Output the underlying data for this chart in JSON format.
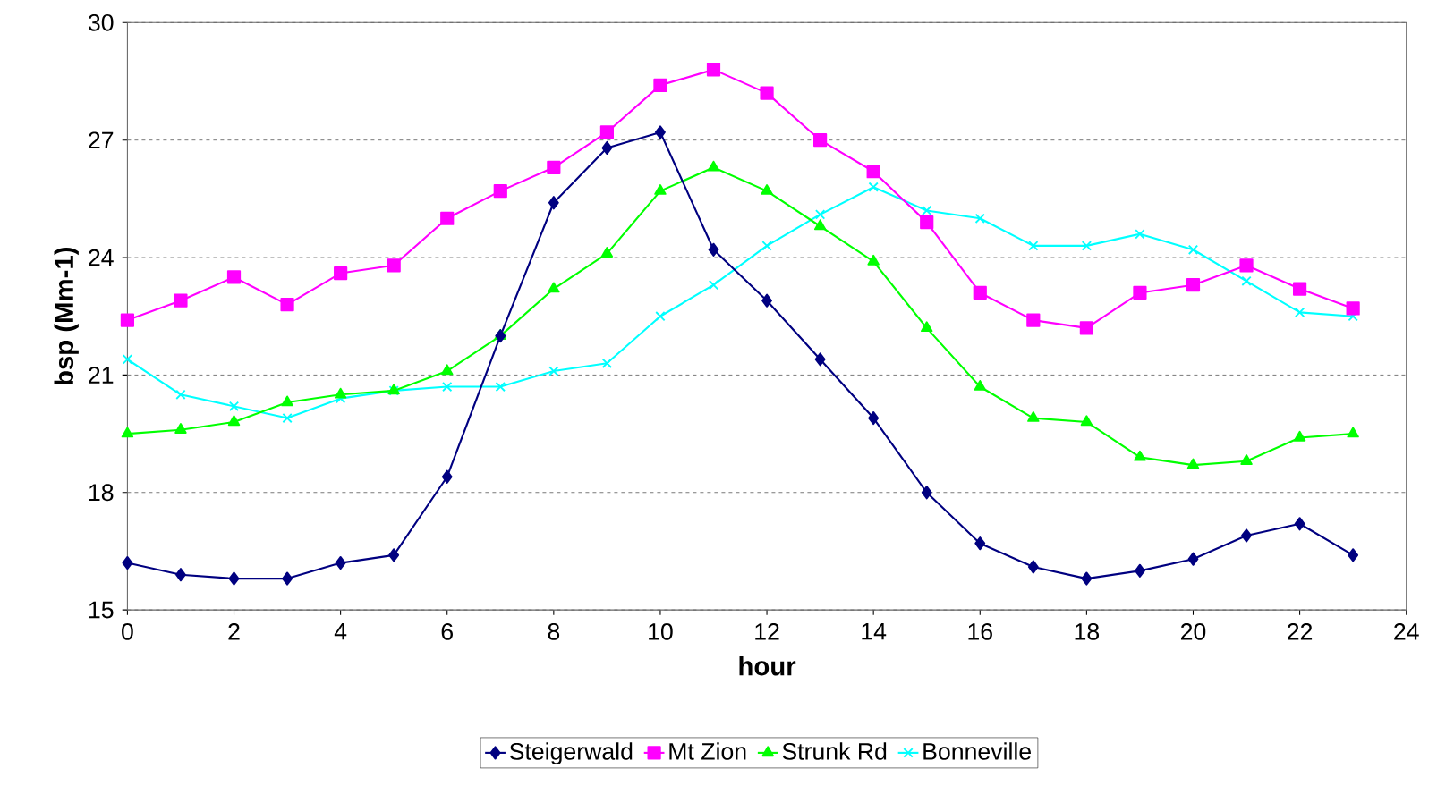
{
  "chart_data": {
    "type": "line",
    "xlabel": "hour",
    "ylabel": "bsp (Mm-1)",
    "x": [
      0,
      1,
      2,
      3,
      4,
      5,
      6,
      7,
      8,
      9,
      10,
      11,
      12,
      13,
      14,
      15,
      16,
      17,
      18,
      19,
      20,
      21,
      22,
      23
    ],
    "xlim": [
      0,
      24
    ],
    "xticks": [
      0,
      2,
      4,
      6,
      8,
      10,
      12,
      14,
      16,
      18,
      20,
      22,
      24
    ],
    "ylim": [
      15,
      30
    ],
    "yticks": [
      15,
      18,
      21,
      24,
      27,
      30
    ],
    "grid": "y",
    "legend": "bottom",
    "line_style": "solid",
    "series": [
      {
        "name": "Steigerwald",
        "color": "#000080",
        "marker": "diamond",
        "values": [
          16.2,
          15.9,
          15.8,
          15.8,
          16.2,
          16.4,
          18.4,
          22.0,
          25.4,
          26.8,
          27.2,
          24.2,
          22.9,
          21.4,
          19.9,
          18.0,
          16.7,
          16.1,
          15.8,
          16.0,
          16.3,
          16.9,
          17.2,
          16.4
        ]
      },
      {
        "name": "Mt Zion",
        "color": "#ff00ff",
        "marker": "square",
        "values": [
          22.4,
          22.9,
          23.5,
          22.8,
          23.6,
          23.8,
          25.0,
          25.7,
          26.3,
          27.2,
          28.4,
          28.8,
          28.2,
          27.0,
          26.2,
          24.9,
          23.1,
          22.4,
          22.2,
          23.1,
          23.3,
          23.8,
          23.2,
          22.7
        ]
      },
      {
        "name": "Strunk Rd",
        "color": "#00ff00",
        "marker": "triangle",
        "values": [
          19.5,
          19.6,
          19.8,
          20.3,
          20.5,
          20.6,
          21.1,
          22.0,
          23.2,
          24.1,
          25.7,
          26.3,
          25.7,
          24.8,
          23.9,
          22.2,
          20.7,
          19.9,
          19.8,
          18.9,
          18.7,
          18.8,
          19.4,
          19.5
        ]
      },
      {
        "name": "Bonneville",
        "color": "#00ffff",
        "marker": "cross",
        "values": [
          21.4,
          20.5,
          20.2,
          19.9,
          20.4,
          20.6,
          20.7,
          20.7,
          21.1,
          21.3,
          22.5,
          23.3,
          24.3,
          25.1,
          25.8,
          25.2,
          25.0,
          24.3,
          24.3,
          24.6,
          24.2,
          23.4,
          22.6,
          22.5
        ]
      }
    ]
  }
}
